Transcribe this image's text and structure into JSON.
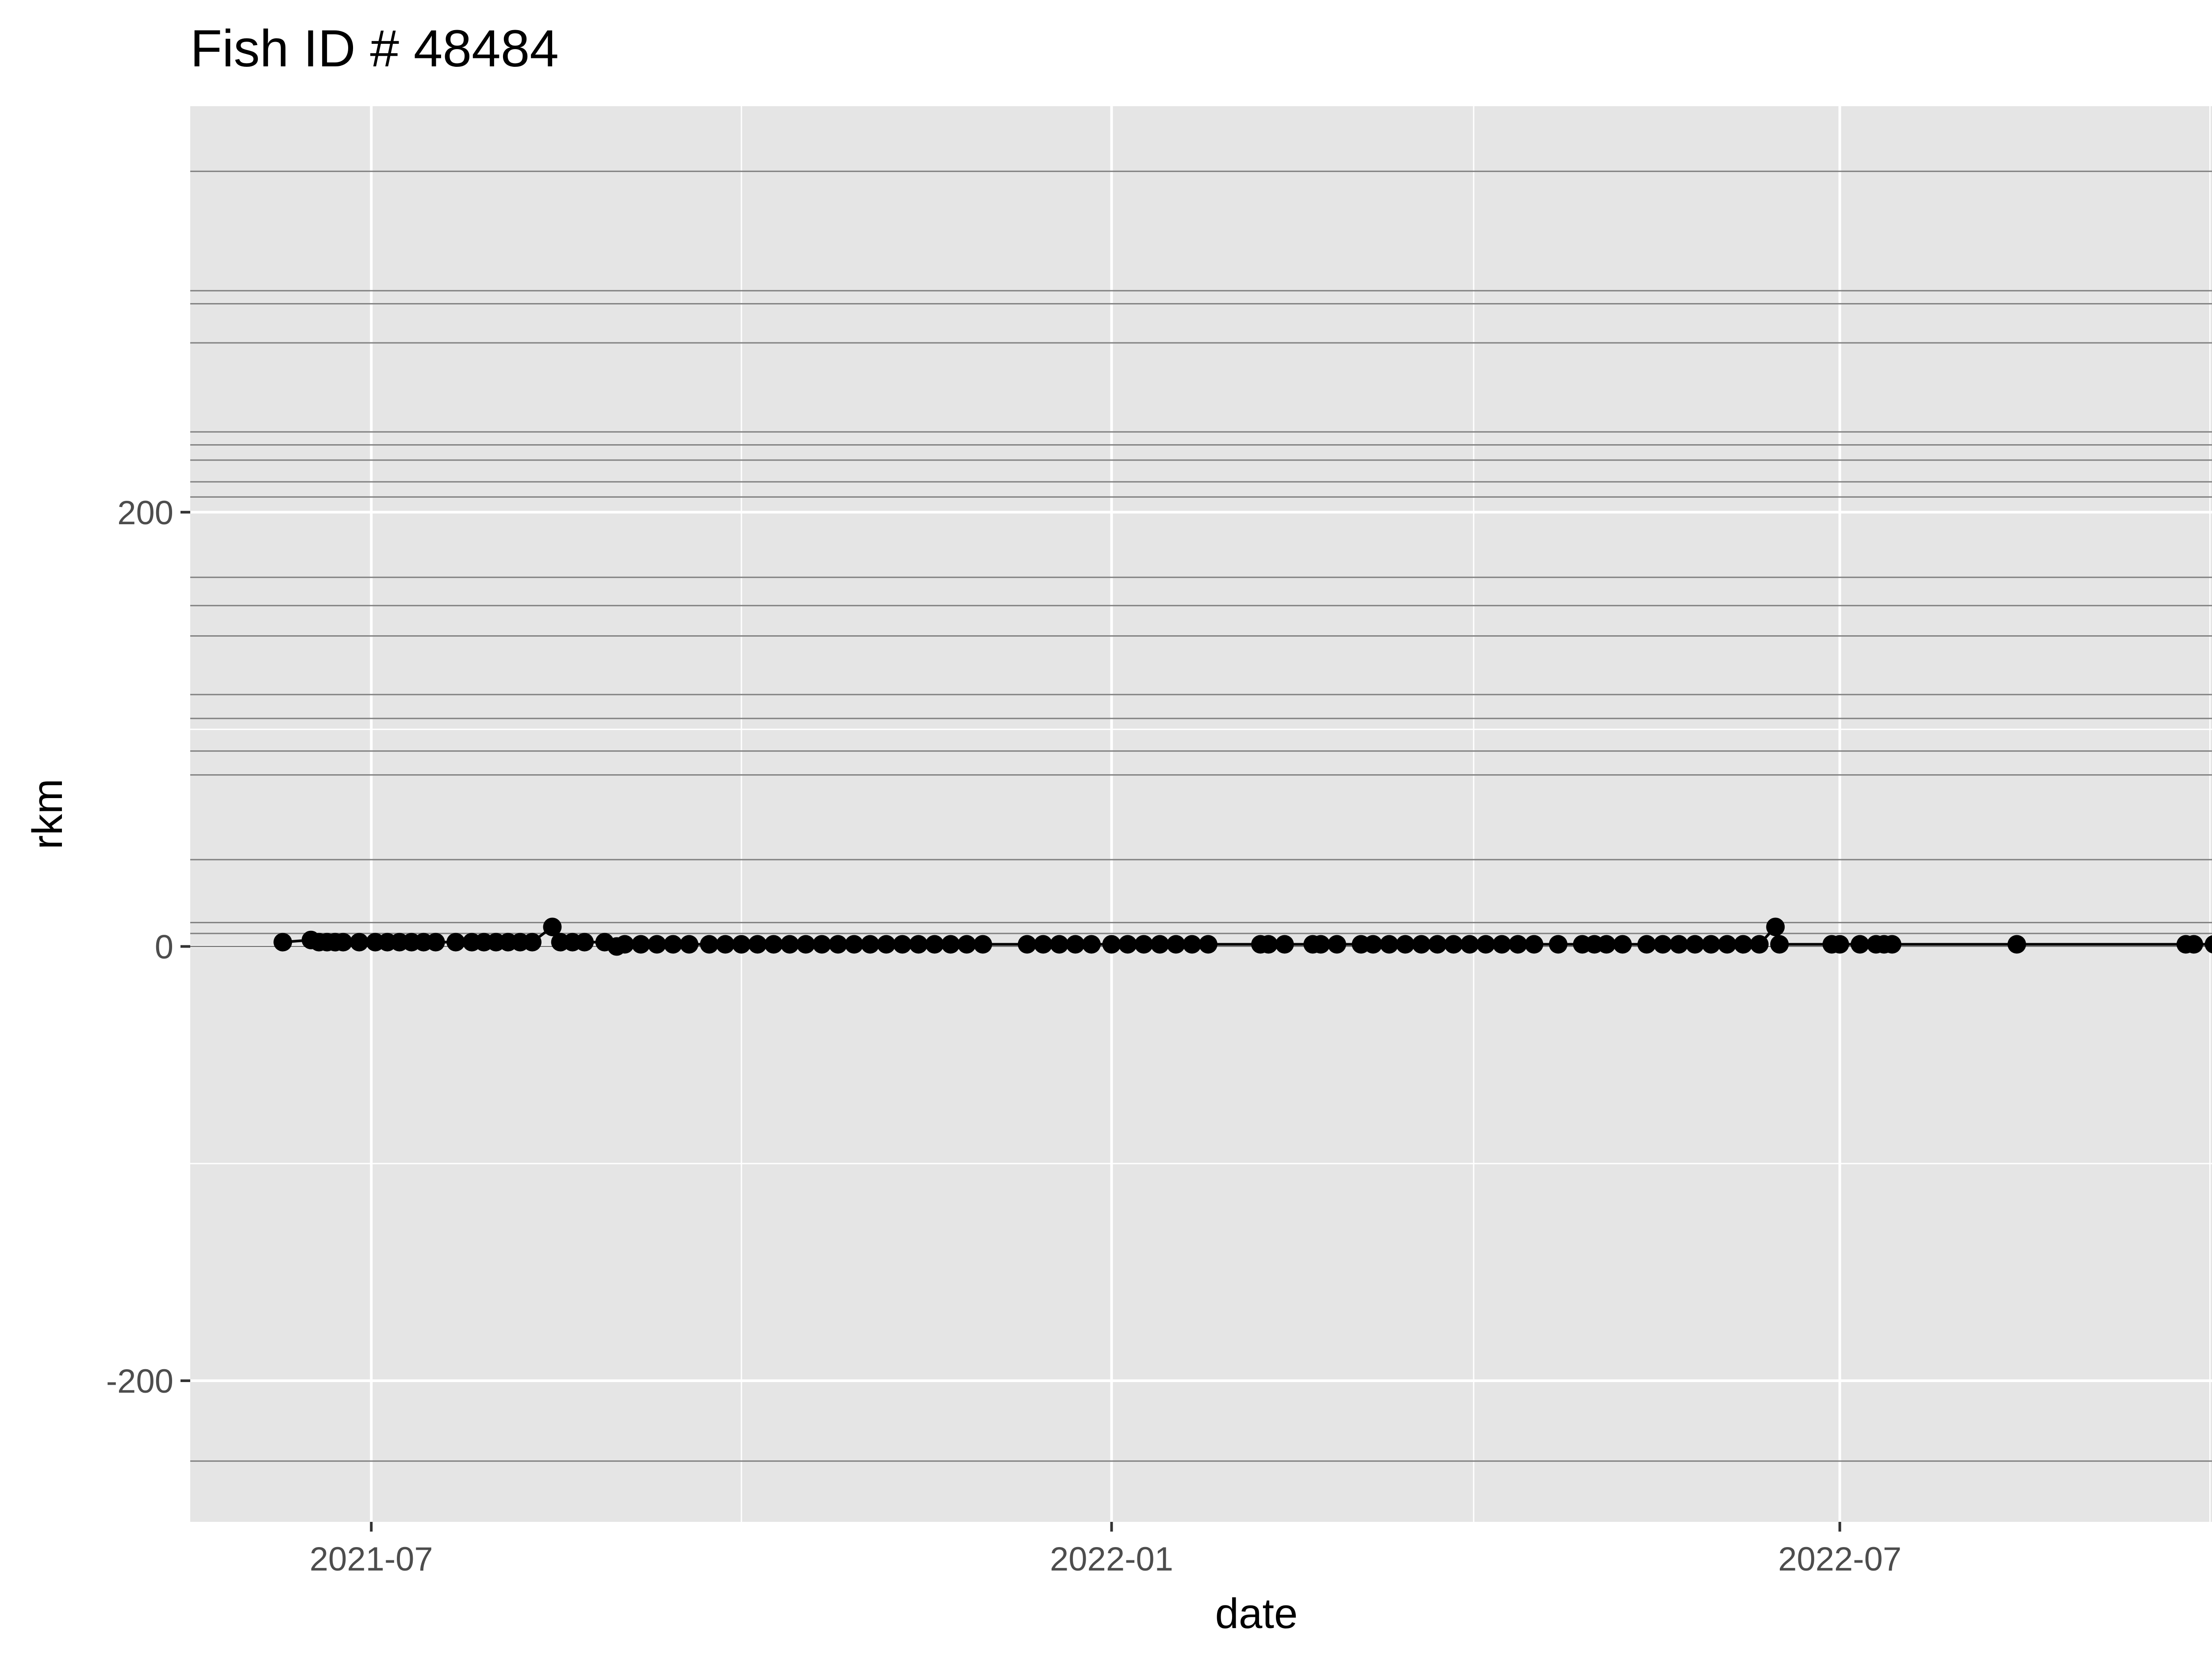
{
  "chart_data": {
    "type": "line",
    "title": "Fish ID # 48484",
    "xlabel": "date",
    "ylabel": "rkm",
    "x_ticks": [
      {
        "label": "2021-07",
        "date": "2021-07-01"
      },
      {
        "label": "2022-01",
        "date": "2022-01-01"
      },
      {
        "label": "2022-07",
        "date": "2022-07-01"
      }
    ],
    "x_minor_ticks": [
      "2021-10-01",
      "2022-04-01",
      "2022-10-01"
    ],
    "y_ticks": [
      {
        "label": "200",
        "value": 200
      },
      {
        "label": "0",
        "value": 0
      },
      {
        "label": "-200",
        "value": -200
      }
    ],
    "y_minor_ticks": [
      100,
      -100
    ],
    "xlim": [
      "2021-05-17",
      "2022-10-29"
    ],
    "ylim": [
      -265,
      387
    ],
    "grid": true,
    "background": "#e5e5e5",
    "gridline_color": "#ffffff",
    "reference_line_color": "#7f7f7f",
    "point_color": "#000000",
    "reference_lines_rkm": [
      357,
      302,
      296,
      278,
      237,
      231,
      224,
      214,
      207,
      170,
      157,
      143,
      116,
      105,
      90,
      79,
      40,
      11,
      6,
      0,
      -237
    ],
    "points": [
      {
        "date": "2021-06-09",
        "rkm": 2
      },
      {
        "date": "2021-06-16",
        "rkm": 3
      },
      {
        "date": "2021-06-18",
        "rkm": 2
      },
      {
        "date": "2021-06-20",
        "rkm": 2
      },
      {
        "date": "2021-06-22",
        "rkm": 2
      },
      {
        "date": "2021-06-24",
        "rkm": 2
      },
      {
        "date": "2021-06-28",
        "rkm": 2
      },
      {
        "date": "2021-07-02",
        "rkm": 2
      },
      {
        "date": "2021-07-05",
        "rkm": 2
      },
      {
        "date": "2021-07-08",
        "rkm": 2
      },
      {
        "date": "2021-07-11",
        "rkm": 2
      },
      {
        "date": "2021-07-14",
        "rkm": 2
      },
      {
        "date": "2021-07-17",
        "rkm": 2
      },
      {
        "date": "2021-07-22",
        "rkm": 2
      },
      {
        "date": "2021-07-26",
        "rkm": 2
      },
      {
        "date": "2021-07-29",
        "rkm": 2
      },
      {
        "date": "2021-08-01",
        "rkm": 2
      },
      {
        "date": "2021-08-04",
        "rkm": 2
      },
      {
        "date": "2021-08-07",
        "rkm": 2
      },
      {
        "date": "2021-08-10",
        "rkm": 2
      },
      {
        "date": "2021-08-15",
        "rkm": 9
      },
      {
        "date": "2021-08-17",
        "rkm": 2
      },
      {
        "date": "2021-08-20",
        "rkm": 2
      },
      {
        "date": "2021-08-23",
        "rkm": 2
      },
      {
        "date": "2021-08-28",
        "rkm": 2
      },
      {
        "date": "2021-08-31",
        "rkm": 0
      },
      {
        "date": "2021-09-02",
        "rkm": 1
      },
      {
        "date": "2021-09-06",
        "rkm": 1
      },
      {
        "date": "2021-09-10",
        "rkm": 1
      },
      {
        "date": "2021-09-14",
        "rkm": 1
      },
      {
        "date": "2021-09-18",
        "rkm": 1
      },
      {
        "date": "2021-09-23",
        "rkm": 1
      },
      {
        "date": "2021-09-27",
        "rkm": 1
      },
      {
        "date": "2021-10-01",
        "rkm": 1
      },
      {
        "date": "2021-10-05",
        "rkm": 1
      },
      {
        "date": "2021-10-09",
        "rkm": 1
      },
      {
        "date": "2021-10-13",
        "rkm": 1
      },
      {
        "date": "2021-10-17",
        "rkm": 1
      },
      {
        "date": "2021-10-21",
        "rkm": 1
      },
      {
        "date": "2021-10-25",
        "rkm": 1
      },
      {
        "date": "2021-10-29",
        "rkm": 1
      },
      {
        "date": "2021-11-02",
        "rkm": 1
      },
      {
        "date": "2021-11-06",
        "rkm": 1
      },
      {
        "date": "2021-11-10",
        "rkm": 1
      },
      {
        "date": "2021-11-14",
        "rkm": 1
      },
      {
        "date": "2021-11-18",
        "rkm": 1
      },
      {
        "date": "2021-11-22",
        "rkm": 1
      },
      {
        "date": "2021-11-26",
        "rkm": 1
      },
      {
        "date": "2021-11-30",
        "rkm": 1
      },
      {
        "date": "2021-12-11",
        "rkm": 1
      },
      {
        "date": "2021-12-15",
        "rkm": 1
      },
      {
        "date": "2021-12-19",
        "rkm": 1
      },
      {
        "date": "2021-12-23",
        "rkm": 1
      },
      {
        "date": "2021-12-27",
        "rkm": 1
      },
      {
        "date": "2022-01-01",
        "rkm": 1
      },
      {
        "date": "2022-01-05",
        "rkm": 1
      },
      {
        "date": "2022-01-09",
        "rkm": 1
      },
      {
        "date": "2022-01-13",
        "rkm": 1
      },
      {
        "date": "2022-01-17",
        "rkm": 1
      },
      {
        "date": "2022-01-21",
        "rkm": 1
      },
      {
        "date": "2022-01-25",
        "rkm": 1
      },
      {
        "date": "2022-02-07",
        "rkm": 1
      },
      {
        "date": "2022-02-09",
        "rkm": 1
      },
      {
        "date": "2022-02-13",
        "rkm": 1
      },
      {
        "date": "2022-02-20",
        "rkm": 1
      },
      {
        "date": "2022-02-22",
        "rkm": 1
      },
      {
        "date": "2022-02-26",
        "rkm": 1
      },
      {
        "date": "2022-03-04",
        "rkm": 1
      },
      {
        "date": "2022-03-07",
        "rkm": 1
      },
      {
        "date": "2022-03-11",
        "rkm": 1
      },
      {
        "date": "2022-03-15",
        "rkm": 1
      },
      {
        "date": "2022-03-19",
        "rkm": 1
      },
      {
        "date": "2022-03-23",
        "rkm": 1
      },
      {
        "date": "2022-03-27",
        "rkm": 1
      },
      {
        "date": "2022-03-31",
        "rkm": 1
      },
      {
        "date": "2022-04-04",
        "rkm": 1
      },
      {
        "date": "2022-04-08",
        "rkm": 1
      },
      {
        "date": "2022-04-12",
        "rkm": 1
      },
      {
        "date": "2022-04-16",
        "rkm": 1
      },
      {
        "date": "2022-04-22",
        "rkm": 1
      },
      {
        "date": "2022-04-28",
        "rkm": 1
      },
      {
        "date": "2022-05-01",
        "rkm": 1
      },
      {
        "date": "2022-05-04",
        "rkm": 1
      },
      {
        "date": "2022-05-08",
        "rkm": 1
      },
      {
        "date": "2022-05-14",
        "rkm": 1
      },
      {
        "date": "2022-05-18",
        "rkm": 1
      },
      {
        "date": "2022-05-22",
        "rkm": 1
      },
      {
        "date": "2022-05-26",
        "rkm": 1
      },
      {
        "date": "2022-05-30",
        "rkm": 1
      },
      {
        "date": "2022-06-03",
        "rkm": 1
      },
      {
        "date": "2022-06-07",
        "rkm": 1
      },
      {
        "date": "2022-06-11",
        "rkm": 1
      },
      {
        "date": "2022-06-15",
        "rkm": 9
      },
      {
        "date": "2022-06-16",
        "rkm": 1
      },
      {
        "date": "2022-06-29",
        "rkm": 1
      },
      {
        "date": "2022-07-01",
        "rkm": 1
      },
      {
        "date": "2022-07-06",
        "rkm": 1
      },
      {
        "date": "2022-07-10",
        "rkm": 1
      },
      {
        "date": "2022-07-12",
        "rkm": 1
      },
      {
        "date": "2022-07-14",
        "rkm": 1
      },
      {
        "date": "2022-08-14",
        "rkm": 1
      },
      {
        "date": "2022-09-25",
        "rkm": 1
      },
      {
        "date": "2022-09-27",
        "rkm": 1
      },
      {
        "date": "2022-10-02",
        "rkm": 1
      },
      {
        "date": "2022-10-13",
        "rkm": 1
      }
    ]
  }
}
